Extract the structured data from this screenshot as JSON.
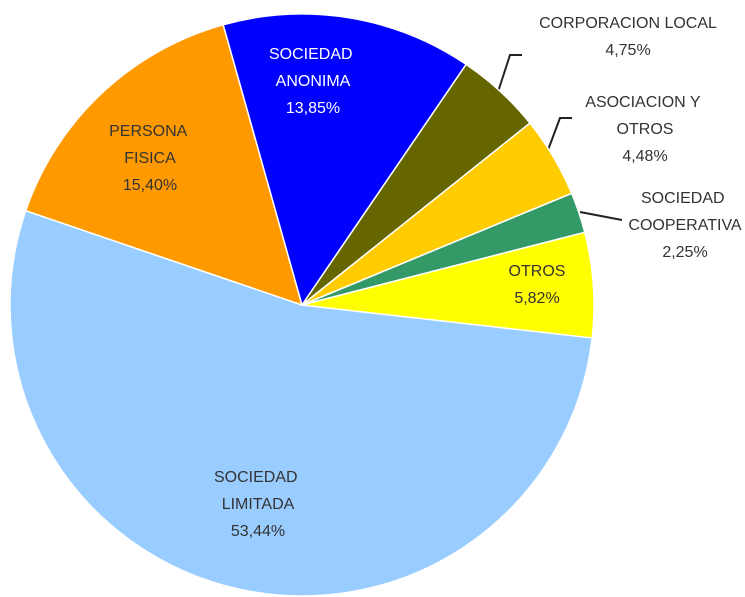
{
  "chart_data": {
    "type": "pie",
    "categories": [
      "SOCIEDAD LIMITADA",
      "PERSONA FISICA",
      "SOCIEDAD ANONIMA",
      "CORPORACION LOCAL",
      "ASOCIACION Y OTROS",
      "SOCIEDAD COOPERATIVA",
      "OTROS"
    ],
    "values": [
      53.44,
      15.4,
      13.85,
      4.75,
      4.48,
      2.25,
      5.82
    ],
    "value_labels": [
      "53,44%",
      "15,40%",
      "13,85%",
      "4,75%",
      "4,48%",
      "2,25%",
      "5,82%"
    ],
    "colors": [
      "#99ccff",
      "#ff9900",
      "#0000ff",
      "#666600",
      "#ffcc00",
      "#339966",
      "#ffff00"
    ]
  }
}
